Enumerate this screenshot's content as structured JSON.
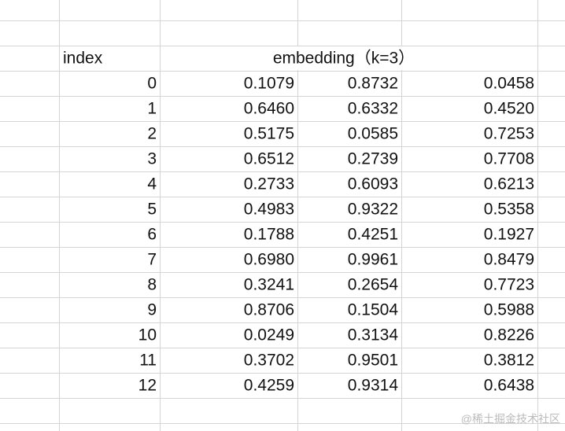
{
  "table": {
    "header": {
      "index": "index",
      "embedding": "embedding（k=3）"
    },
    "rows": [
      [
        0,
        "0.1079",
        "0.8732",
        "0.0458"
      ],
      [
        1,
        "0.6460",
        "0.6332",
        "0.4520"
      ],
      [
        2,
        "0.5175",
        "0.0585",
        "0.7253"
      ],
      [
        3,
        "0.6512",
        "0.2739",
        "0.7708"
      ],
      [
        4,
        "0.2733",
        "0.6093",
        "0.6213"
      ],
      [
        5,
        "0.4983",
        "0.9322",
        "0.5358"
      ],
      [
        6,
        "0.1788",
        "0.4251",
        "0.1927"
      ],
      [
        7,
        "0.6980",
        "0.9961",
        "0.8479"
      ],
      [
        8,
        "0.3241",
        "0.2654",
        "0.7723"
      ],
      [
        9,
        "0.8706",
        "0.1504",
        "0.5988"
      ],
      [
        10,
        "0.0249",
        "0.3134",
        "0.8226"
      ],
      [
        11,
        "0.3702",
        "0.9501",
        "0.3812"
      ],
      [
        12,
        "0.4259",
        "0.9314",
        "0.6438"
      ]
    ]
  },
  "watermark": "@稀土掘金技术社区"
}
